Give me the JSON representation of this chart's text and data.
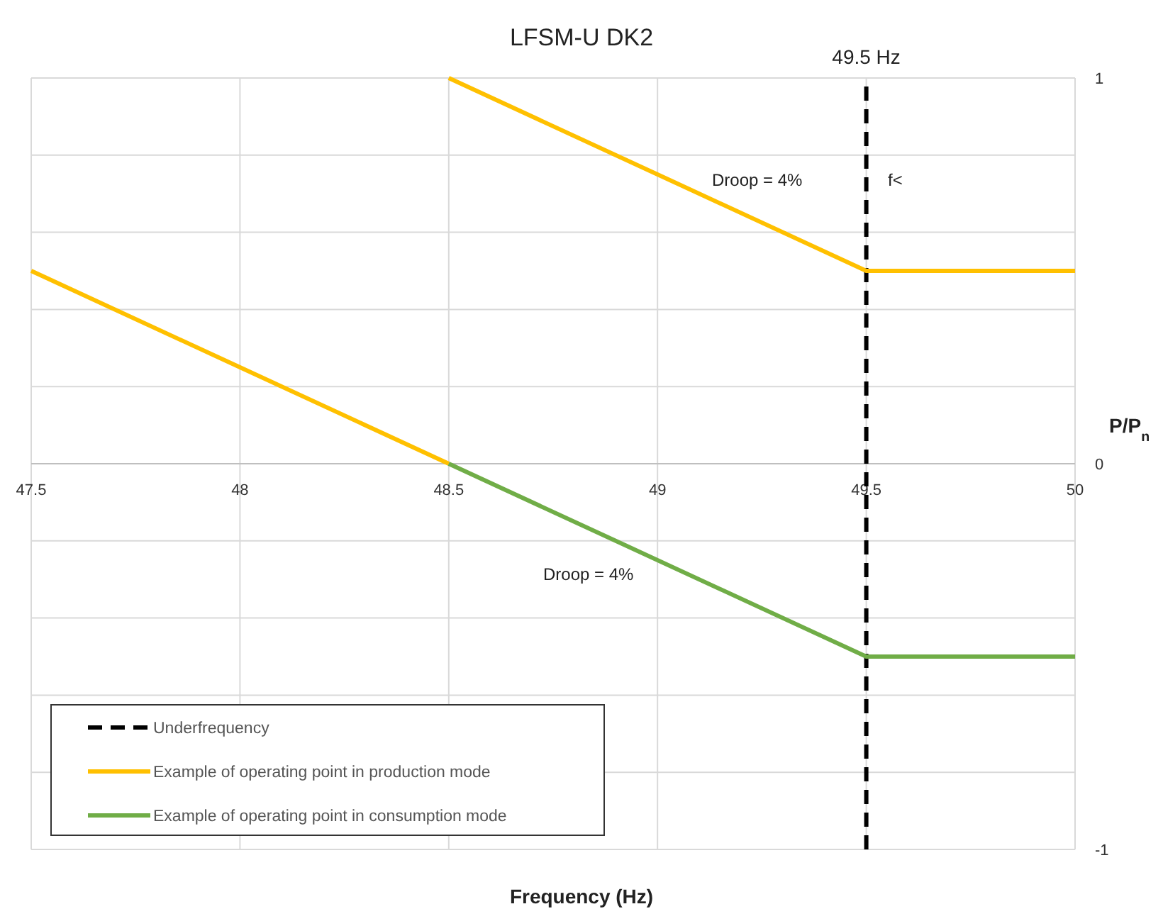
{
  "chart_data": {
    "type": "line",
    "title": "LFSM-U DK2",
    "xlabel": "Frequency (Hz)",
    "ylabel": "P/P$_{n}$",
    "xlim": [
      47.5,
      50
    ],
    "xticks": [
      47.5,
      48,
      48.5,
      49,
      49.5,
      50
    ],
    "ylim": [
      -1,
      1
    ],
    "yticks": [
      {
        "value": -1,
        "label": "-1"
      },
      {
        "value": -0.8,
        "label": null
      },
      {
        "value": -0.6,
        "label": null
      },
      {
        "value": -0.4,
        "label": null
      },
      {
        "value": -0.2,
        "label": null
      },
      {
        "value": 0,
        "label": "0"
      },
      {
        "value": 0.2,
        "label": null
      },
      {
        "value": 0.4,
        "label": null
      },
      {
        "value": 0.6,
        "label": null
      },
      {
        "value": 0.8,
        "label": null
      },
      {
        "value": 1,
        "label": "1"
      }
    ],
    "grid": true,
    "legend": "bottom left",
    "marker": "none",
    "series": [
      {
        "name": "Underfrequency",
        "color": "#000000",
        "line_style": "dashed",
        "x": [
          49.5,
          49.5
        ],
        "values": [
          -1,
          1
        ]
      },
      {
        "name": "Example of operating point in production mode",
        "color": "#ffc000",
        "x": [
          47.5,
          48.5
        ],
        "values": [
          0.5,
          0
        ]
      },
      {
        "name": "Example of operating point in consumption mode",
        "color": "#70ad47",
        "x": [
          48.5,
          49.5,
          50
        ],
        "values": [
          0,
          -0.5,
          -0.5
        ]
      },
      {
        "color": "#ffc000",
        "x": [
          48.5,
          49.5,
          50
        ],
        "values": [
          1,
          0.5,
          0.5
        ]
      }
    ],
    "annotations": [
      {
        "text": "49.5 Hz",
        "x": 49.5,
        "y": 1
      },
      "f<",
      "Droop = 4%",
      "Droop = 4%"
    ]
  }
}
